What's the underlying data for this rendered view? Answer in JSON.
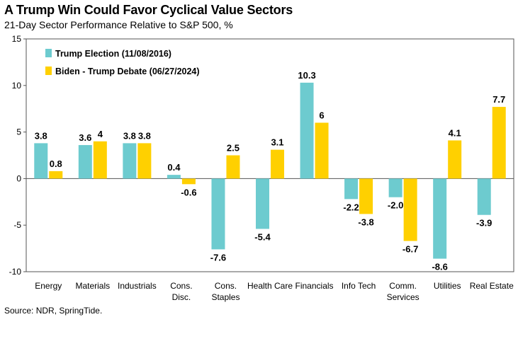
{
  "title": "A Trump Win Could Favor Cyclical Value Sectors",
  "subtitle": "21-Day Sector Performance Relative to S&P 500, %",
  "source": "Source: NDR, SpringTide.",
  "chart_data": {
    "type": "bar",
    "categories": [
      [
        "Energy"
      ],
      [
        "Materials"
      ],
      [
        "Industrials"
      ],
      [
        "Cons.",
        "Disc."
      ],
      [
        "Cons.",
        "Staples"
      ],
      [
        "Health Care"
      ],
      [
        "Financials"
      ],
      [
        "Info Tech"
      ],
      [
        "Comm.",
        "Services"
      ],
      [
        "Utilities"
      ],
      [
        "Real Estate"
      ]
    ],
    "series": [
      {
        "name": "Trump Election (11/08/2016)",
        "color": "#6DCBCF",
        "values": [
          3.8,
          3.6,
          3.8,
          0.4,
          -7.6,
          -5.4,
          10.3,
          -2.2,
          -2.0,
          -8.6,
          -3.9
        ],
        "labels": [
          "3.8",
          "3.6",
          "3.8",
          "0.4",
          "-7.6",
          "-5.4",
          "10.3",
          "-2.2",
          "-2.0",
          "-8.6",
          "-3.9"
        ]
      },
      {
        "name": "Biden - Trump Debate (06/27/2024)",
        "color": "#FFD000",
        "values": [
          0.8,
          4,
          3.8,
          -0.6,
          2.5,
          3.1,
          6,
          -3.8,
          -6.7,
          4.1,
          7.7
        ],
        "labels": [
          "0.8",
          "4",
          "3.8",
          "-0.6",
          "2.5",
          "3.1",
          "6",
          "-3.8",
          "-6.7",
          "4.1",
          "7.7"
        ]
      }
    ],
    "ylim": [
      -10,
      15
    ],
    "yticks": [
      "-10",
      "-5",
      "0",
      "5",
      "10",
      "15"
    ],
    "grid": false,
    "legend": "top-left"
  }
}
